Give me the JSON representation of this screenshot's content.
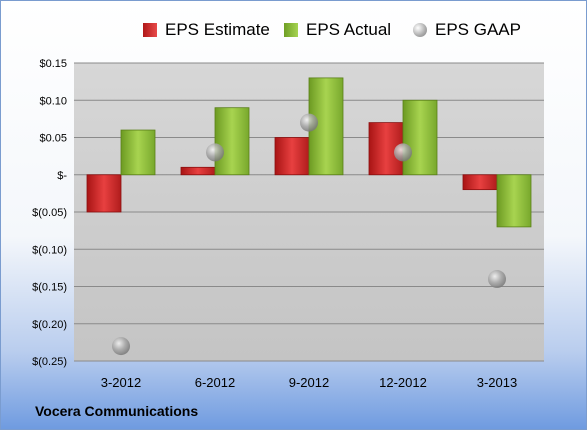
{
  "chart_data": {
    "type": "bar",
    "categories": [
      "3-2012",
      "6-2012",
      "9-2012",
      "12-2012",
      "3-2013"
    ],
    "series": [
      {
        "name": "EPS Estimate",
        "type": "bar",
        "color": "#d42a2a",
        "values": [
          -0.05,
          0.01,
          0.05,
          0.07,
          -0.02
        ]
      },
      {
        "name": "EPS Actual",
        "type": "bar",
        "color": "#8fbf3a",
        "values": [
          0.06,
          0.09,
          0.13,
          0.1,
          -0.07
        ]
      },
      {
        "name": "EPS GAAP",
        "type": "scatter",
        "color": "#b0b0b0",
        "values": [
          -0.23,
          0.03,
          0.07,
          0.03,
          -0.14
        ]
      }
    ],
    "y_ticks": [
      {
        "value": 0.15,
        "label": "$0.15"
      },
      {
        "value": 0.1,
        "label": "$0.10"
      },
      {
        "value": 0.05,
        "label": "$0.05"
      },
      {
        "value": 0,
        "label": "$-"
      },
      {
        "value": -0.05,
        "label": "$(0.05)"
      },
      {
        "value": -0.1,
        "label": "$(0.10)"
      },
      {
        "value": -0.15,
        "label": "$(0.15)"
      },
      {
        "value": -0.2,
        "label": "$(0.20)"
      },
      {
        "value": -0.25,
        "label": "$(0.25)"
      }
    ],
    "ylim": [
      -0.25,
      0.15
    ],
    "grid": true,
    "legend_position": "top"
  },
  "footer": {
    "company": "Vocera Communications"
  }
}
